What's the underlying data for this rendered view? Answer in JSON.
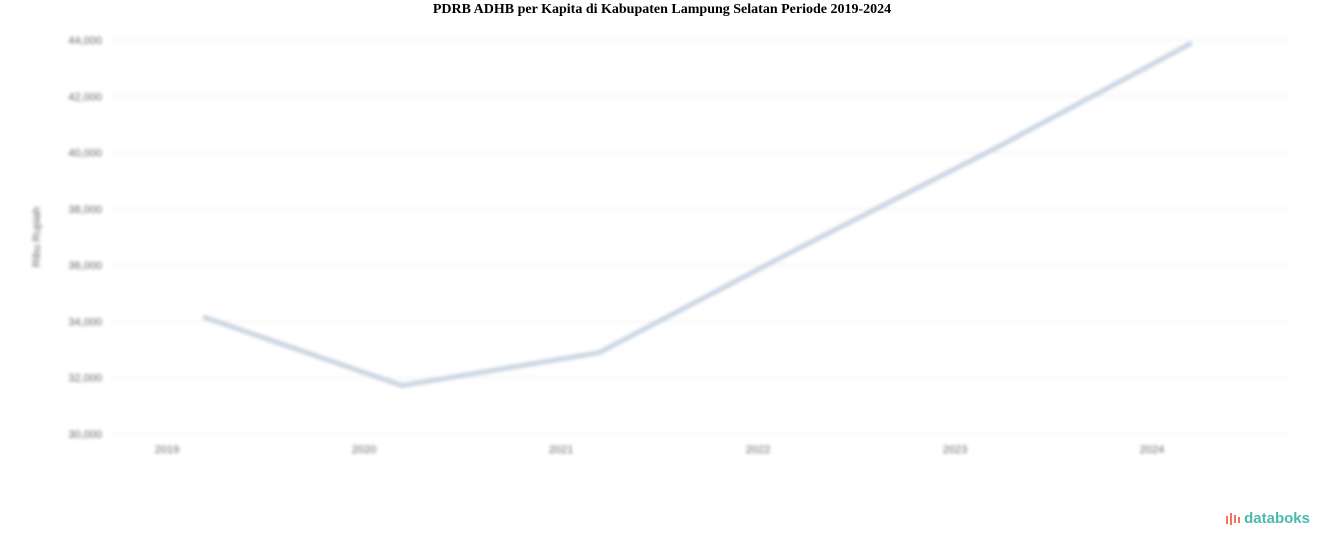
{
  "chart_data": {
    "type": "line",
    "title": "PDRB ADHB per Kapita di Kabupaten Lampung Selatan Periode 2019-2024",
    "ylabel": "Ribu Rupiah",
    "xlabel": "",
    "categories": [
      "2019",
      "2020",
      "2021",
      "2022",
      "2023",
      "2024"
    ],
    "series": [
      {
        "values": [
          34140,
          31720,
          32890,
          36550,
          40110,
          43860
        ],
        "color": "#c9d6e3"
      }
    ],
    "ylim": [
      30000,
      44000
    ],
    "yticks": [
      30000,
      32000,
      34000,
      36000,
      38000,
      40000,
      42000,
      44000
    ],
    "ytick_labels": [
      "30,000",
      "32,000",
      "34,000",
      "36,000",
      "38,000",
      "40,000",
      "42,000",
      "44,000"
    ],
    "grid": true,
    "legend": "none"
  },
  "brand": {
    "name": "databoks",
    "color": "#4bb8ae",
    "accent": "#f0735a"
  }
}
